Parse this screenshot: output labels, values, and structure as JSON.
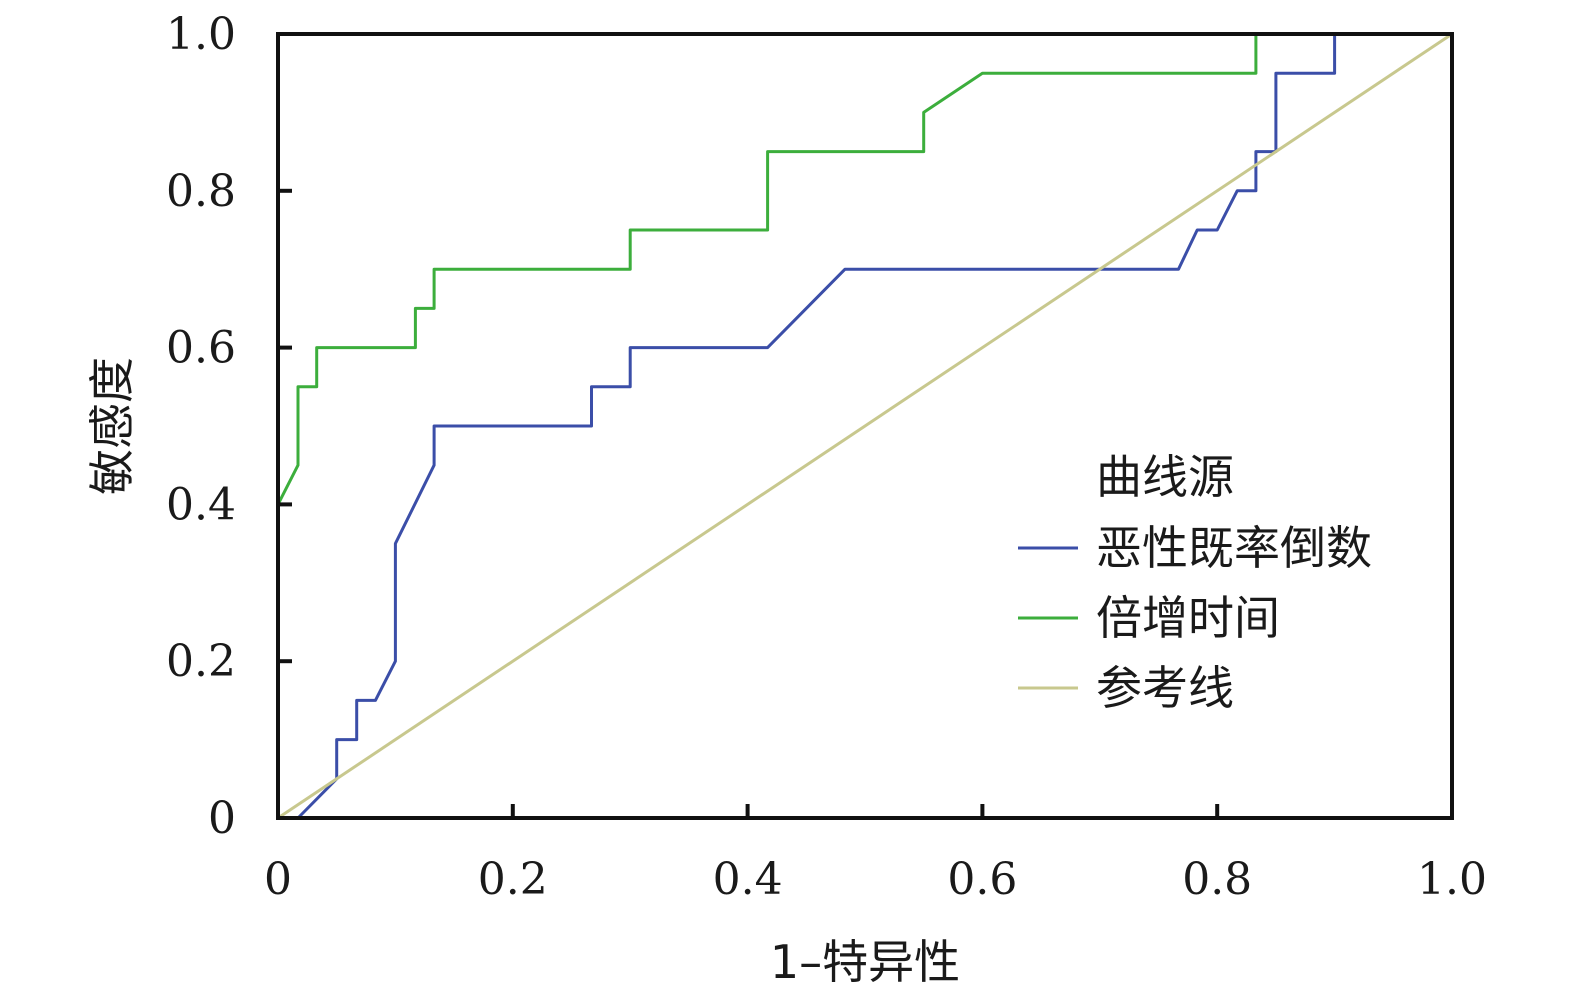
{
  "chart_data": {
    "type": "line",
    "xlabel": "1–特异性",
    "ylabel": "敏感度",
    "xlim": [
      0,
      1
    ],
    "ylim": [
      0,
      1
    ],
    "xticks": [
      0,
      0.2,
      0.4,
      0.6,
      0.8,
      1.0
    ],
    "xtick_labels": [
      "0",
      "0.2",
      "0.4",
      "0.6",
      "0.8",
      "1.0"
    ],
    "yticks": [
      0,
      0.2,
      0.4,
      0.6,
      0.8,
      1.0
    ],
    "ytick_labels": [
      "0",
      "0.2",
      "0.4",
      "0.6",
      "0.8",
      "1.0"
    ],
    "grid": false,
    "legend": {
      "title": "曲线源",
      "position": "bottom-right"
    },
    "series": [
      {
        "name": "恶性既率倒数",
        "color": "#3b4ea8",
        "x": [
          0,
          0.017,
          0.05,
          0.05,
          0.067,
          0.067,
          0.083,
          0.1,
          0.1,
          0.1,
          0.133,
          0.133,
          0.267,
          0.267,
          0.3,
          0.3,
          0.417,
          0.483,
          0.767,
          0.783,
          0.8,
          0.817,
          0.833,
          0.833,
          0.85,
          0.85,
          0.9,
          0.9
        ],
        "y": [
          0,
          0,
          0.05,
          0.1,
          0.1,
          0.15,
          0.15,
          0.2,
          0.2,
          0.35,
          0.45,
          0.5,
          0.5,
          0.55,
          0.55,
          0.6,
          0.6,
          0.7,
          0.7,
          0.75,
          0.75,
          0.8,
          0.8,
          0.85,
          0.85,
          0.95,
          0.95,
          1.0
        ]
      },
      {
        "name": "倍增时间",
        "color": "#3cae3c",
        "x": [
          0,
          0,
          0.017,
          0.017,
          0.033,
          0.033,
          0.117,
          0.117,
          0.133,
          0.133,
          0.3,
          0.3,
          0.417,
          0.417,
          0.55,
          0.55,
          0.6,
          0.833,
          0.833,
          1.0
        ],
        "y": [
          0,
          0.4,
          0.45,
          0.55,
          0.55,
          0.6,
          0.6,
          0.65,
          0.65,
          0.7,
          0.7,
          0.75,
          0.75,
          0.85,
          0.85,
          0.9,
          0.95,
          0.95,
          1.0,
          1.0
        ]
      },
      {
        "name": "参考线",
        "color": "#c8c88e",
        "x": [
          0,
          1
        ],
        "y": [
          0,
          1
        ]
      }
    ]
  }
}
